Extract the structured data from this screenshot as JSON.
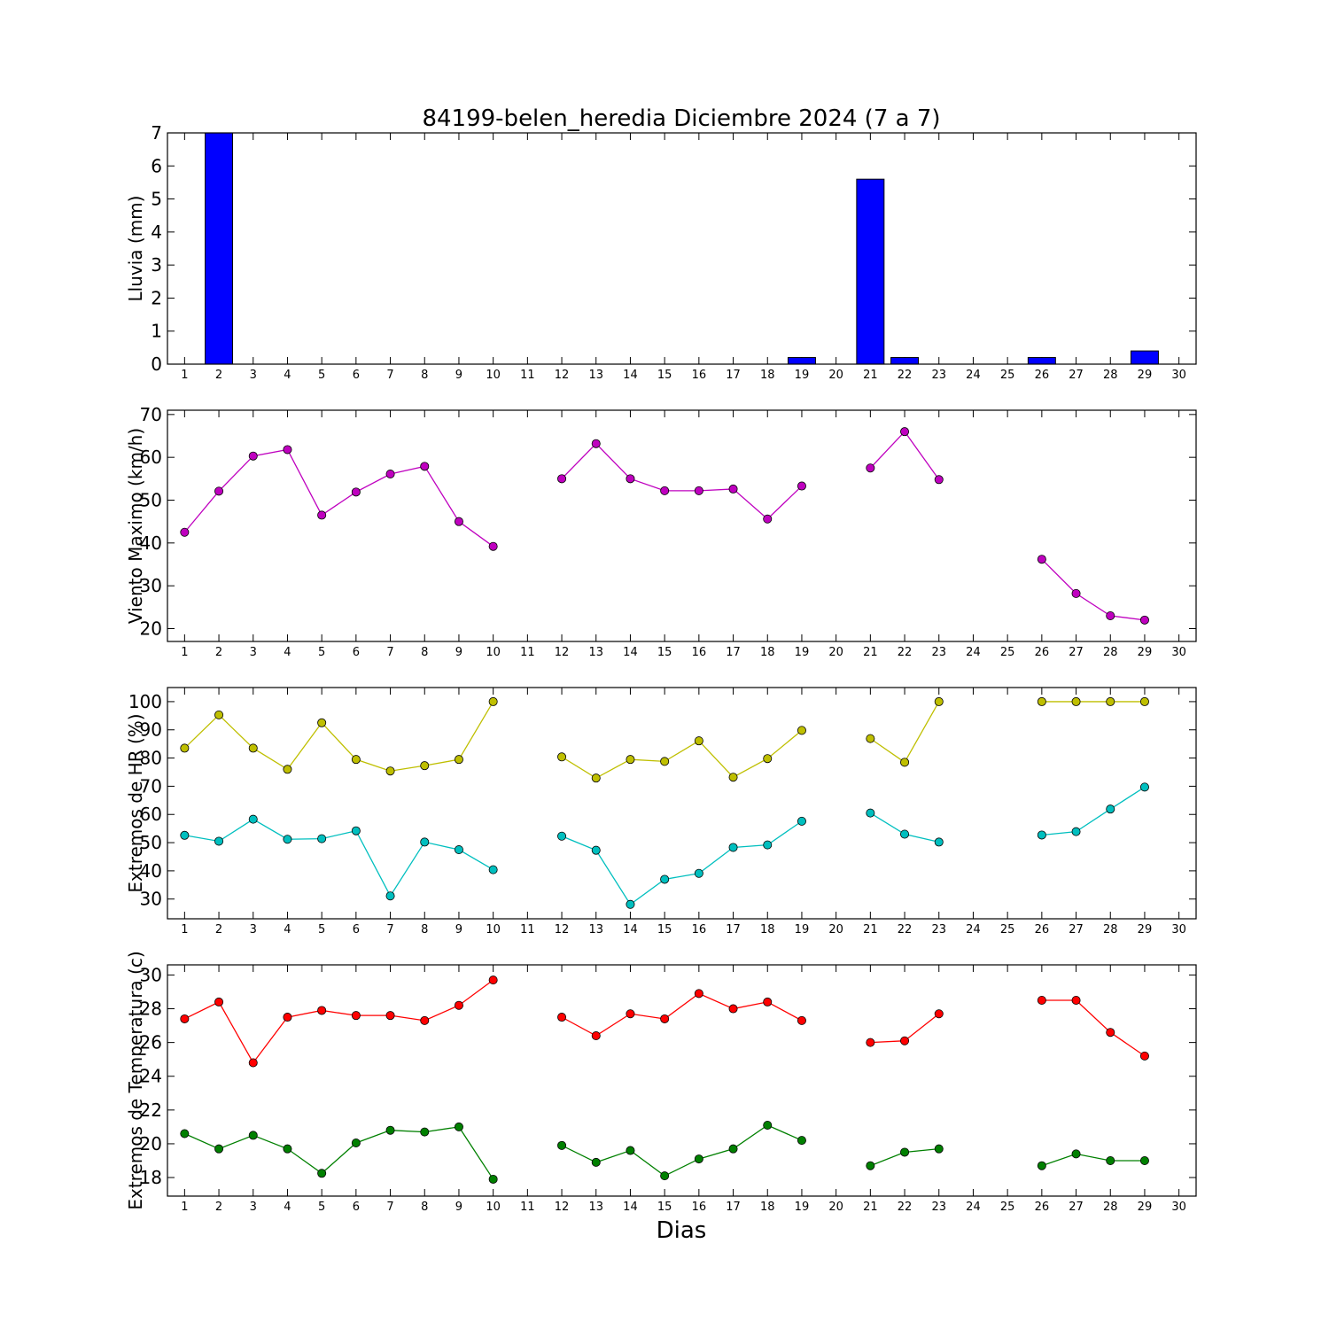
{
  "title": "84199-belen_heredia Diciembre 2024  (7 a 7)",
  "xlabel": "Dias",
  "chart_data": [
    {
      "type": "bar",
      "ylabel": "Lluvia (mm)",
      "xlim": [
        0.5,
        30.5
      ],
      "ylim": [
        0,
        7
      ],
      "yticks": [
        0,
        1,
        2,
        3,
        4,
        5,
        6,
        7
      ],
      "xticks": [
        1,
        2,
        3,
        4,
        5,
        6,
        7,
        8,
        9,
        10,
        11,
        12,
        13,
        14,
        15,
        16,
        17,
        18,
        19,
        20,
        21,
        22,
        23,
        24,
        25,
        26,
        27,
        28,
        29,
        30
      ],
      "bar_color": "#0000ff",
      "x": [
        1,
        2,
        3,
        4,
        5,
        6,
        7,
        8,
        9,
        10,
        12,
        13,
        14,
        15,
        16,
        17,
        18,
        19,
        21,
        22,
        23,
        26,
        27,
        28,
        29
      ],
      "values": [
        0,
        7.0,
        0,
        0,
        0,
        0,
        0,
        0,
        0,
        0,
        0,
        0,
        0,
        0,
        0,
        0,
        0,
        0.2,
        5.6,
        0.2,
        0,
        0.2,
        0,
        0,
        0.4
      ]
    },
    {
      "type": "line",
      "ylabel": "Viento Maximo (km/h)",
      "xlim": [
        0.5,
        30.5
      ],
      "ylim": [
        17,
        71
      ],
      "yticks": [
        20,
        30,
        40,
        50,
        60,
        70
      ],
      "xticks": [
        1,
        2,
        3,
        4,
        5,
        6,
        7,
        8,
        9,
        10,
        11,
        12,
        13,
        14,
        15,
        16,
        17,
        18,
        19,
        20,
        21,
        22,
        23,
        24,
        25,
        26,
        27,
        28,
        29,
        30
      ],
      "series": [
        {
          "color": "#bf00bf",
          "segments": [
            {
              "x": [
                1,
                2,
                3,
                4,
                5,
                6,
                7,
                8,
                9,
                10
              ],
              "y": [
                42.5,
                52.1,
                60.3,
                61.8,
                46.5,
                51.9,
                56.1,
                57.9,
                45.0,
                39.2
              ]
            },
            {
              "x": [
                12,
                13,
                14,
                15,
                16,
                17,
                18,
                19
              ],
              "y": [
                55.0,
                63.2,
                55.0,
                52.2,
                52.2,
                52.6,
                45.6,
                53.3
              ]
            },
            {
              "x": [
                21,
                22,
                23
              ],
              "y": [
                57.5,
                66.0,
                54.8
              ]
            },
            {
              "x": [
                26,
                27,
                28,
                29
              ],
              "y": [
                36.2,
                28.2,
                23.0,
                22.0
              ]
            }
          ]
        }
      ]
    },
    {
      "type": "line",
      "ylabel": "Extremos de HR (%)",
      "xlim": [
        0.5,
        30.5
      ],
      "ylim": [
        23,
        105
      ],
      "yticks": [
        30,
        40,
        50,
        60,
        70,
        80,
        90,
        100
      ],
      "xticks": [
        1,
        2,
        3,
        4,
        5,
        6,
        7,
        8,
        9,
        10,
        11,
        12,
        13,
        14,
        15,
        16,
        17,
        18,
        19,
        20,
        21,
        22,
        23,
        24,
        25,
        26,
        27,
        28,
        29,
        30
      ],
      "series": [
        {
          "color": "#bfbf00",
          "segments": [
            {
              "x": [
                1,
                2,
                3,
                4,
                5,
                6,
                7,
                8,
                9,
                10
              ],
              "y": [
                83.5,
                95.3,
                83.5,
                76.0,
                92.5,
                79.5,
                75.4,
                77.3,
                79.5,
                100
              ]
            },
            {
              "x": [
                12,
                13,
                14,
                15,
                16,
                17,
                18,
                19
              ],
              "y": [
                80.4,
                72.9,
                79.5,
                78.8,
                86.1,
                73.2,
                79.8,
                89.8
              ]
            },
            {
              "x": [
                21,
                22,
                23
              ],
              "y": [
                86.9,
                78.5,
                100
              ]
            },
            {
              "x": [
                26,
                27,
                28,
                29
              ],
              "y": [
                100,
                100,
                100,
                100
              ]
            }
          ]
        },
        {
          "color": "#00bfbf",
          "segments": [
            {
              "x": [
                1,
                2,
                3,
                4,
                5,
                6,
                7,
                8,
                9,
                10
              ],
              "y": [
                52.6,
                50.5,
                58.3,
                51.2,
                51.4,
                54.2,
                31.1,
                50.2,
                47.5,
                40.4
              ]
            },
            {
              "x": [
                12,
                13,
                14,
                15,
                16,
                17,
                18,
                19
              ],
              "y": [
                52.3,
                47.3,
                28.1,
                37.0,
                39.1,
                48.3,
                49.2,
                57.6
              ]
            },
            {
              "x": [
                21,
                22,
                23
              ],
              "y": [
                60.5,
                53.0,
                50.2
              ]
            },
            {
              "x": [
                26,
                27,
                28,
                29
              ],
              "y": [
                52.7,
                53.9,
                61.9,
                69.7
              ]
            }
          ]
        }
      ]
    },
    {
      "type": "line",
      "ylabel": "Extremos de Temperatura (c)",
      "xlim": [
        0.5,
        30.5
      ],
      "ylim": [
        16.9,
        30.6
      ],
      "yticks": [
        18,
        20,
        22,
        24,
        26,
        28,
        30
      ],
      "xticks": [
        1,
        2,
        3,
        4,
        5,
        6,
        7,
        8,
        9,
        10,
        11,
        12,
        13,
        14,
        15,
        16,
        17,
        18,
        19,
        20,
        21,
        22,
        23,
        24,
        25,
        26,
        27,
        28,
        29,
        30
      ],
      "series": [
        {
          "color": "#ff0000",
          "segments": [
            {
              "x": [
                1,
                2,
                3,
                4,
                5,
                6,
                7,
                8,
                9,
                10
              ],
              "y": [
                27.4,
                28.4,
                24.8,
                27.5,
                27.9,
                27.6,
                27.6,
                27.3,
                28.2,
                29.7
              ]
            },
            {
              "x": [
                12,
                13,
                14,
                15,
                16,
                17,
                18,
                19
              ],
              "y": [
                27.5,
                26.4,
                27.7,
                27.4,
                28.9,
                28.0,
                28.4,
                27.3
              ]
            },
            {
              "x": [
                21,
                22,
                23
              ],
              "y": [
                26.0,
                26.1,
                27.7
              ]
            },
            {
              "x": [
                26,
                27,
                28,
                29
              ],
              "y": [
                28.5,
                28.5,
                26.6,
                25.2
              ]
            }
          ]
        },
        {
          "color": "#008000",
          "segments": [
            {
              "x": [
                1,
                2,
                3,
                4,
                5,
                6,
                7,
                8,
                9,
                10
              ],
              "y": [
                20.6,
                19.7,
                20.5,
                19.7,
                18.25,
                20.05,
                20.8,
                20.7,
                21.0,
                17.9
              ]
            },
            {
              "x": [
                12,
                13,
                14,
                15,
                16,
                17,
                18,
                19
              ],
              "y": [
                19.9,
                18.9,
                19.6,
                18.1,
                19.1,
                19.7,
                21.1,
                20.2
              ]
            },
            {
              "x": [
                21,
                22,
                23
              ],
              "y": [
                18.7,
                19.5,
                19.7
              ]
            },
            {
              "x": [
                26,
                27,
                28,
                29
              ],
              "y": [
                18.7,
                19.4,
                19.0,
                19.0
              ]
            }
          ]
        }
      ]
    }
  ]
}
